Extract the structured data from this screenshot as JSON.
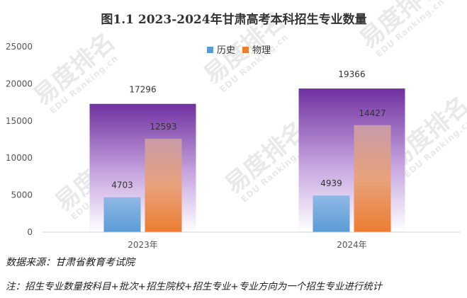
{
  "watermark": {
    "brand": "易度排名",
    "sub": "EDU Ranking.cn"
  },
  "chart_data": {
    "type": "bar",
    "title": "图1.1  2023-2024年甘肃高考本科招生专业数量",
    "categories": [
      "2023年",
      "2024年"
    ],
    "totals": [
      17296,
      19366
    ],
    "series": [
      {
        "name": "历史",
        "values": [
          4703,
          4939
        ],
        "color": "#5b9bd5"
      },
      {
        "name": "物理",
        "values": [
          12593,
          14427
        ],
        "color": "#ed7d31"
      }
    ],
    "total_color": "#7030a0",
    "ylim": [
      0,
      25000
    ],
    "yticks": [
      0,
      5000,
      10000,
      15000,
      20000,
      25000
    ],
    "legend": "top-center",
    "grid": false
  },
  "notes": {
    "source": "数据来源：甘肃省教育考试院",
    "footnote": "注：招生专业数量按科目+批次+招生院校+招生专业+专业方向为一个招生专业进行统计"
  }
}
